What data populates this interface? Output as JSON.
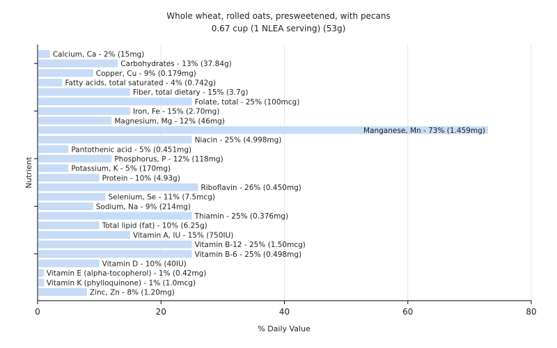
{
  "chart_data": {
    "type": "bar",
    "orientation": "horizontal",
    "title": "Whole wheat, rolled oats, presweetened, with pecans",
    "subtitle": "0.67 cup (1 NLEA serving) (53g)",
    "xlabel": "% Daily Value",
    "ylabel": "Nutrient",
    "xlim": [
      0,
      80
    ],
    "xticks": [
      0,
      20,
      40,
      60,
      80
    ],
    "grid": true,
    "bar_color": "#c6dcf7",
    "categories": [
      "Calcium, Ca",
      "Carbohydrates",
      "Copper, Cu",
      "Fatty acids, total saturated",
      "Fiber, total dietary",
      "Folate, total",
      "Iron, Fe",
      "Magnesium, Mg",
      "Manganese, Mn",
      "Niacin",
      "Pantothenic acid",
      "Phosphorus, P",
      "Potassium, K",
      "Protein",
      "Riboflavin",
      "Selenium, Se",
      "Sodium, Na",
      "Thiamin",
      "Total lipid (fat)",
      "Vitamin A, IU",
      "Vitamin B-12",
      "Vitamin B-6",
      "Vitamin D",
      "Vitamin E (alpha-tocopherol)",
      "Vitamin K (phylloquinone)",
      "Zinc, Zn"
    ],
    "values": [
      2,
      13,
      9,
      4,
      15,
      25,
      15,
      12,
      73,
      25,
      5,
      12,
      5,
      10,
      26,
      11,
      9,
      25,
      10,
      15,
      25,
      25,
      10,
      1,
      1,
      8
    ],
    "labels": [
      "Calcium, Ca - 2% (15mg)",
      "Carbohydrates - 13% (37.84g)",
      "Copper, Cu - 9% (0.179mg)",
      "Fatty acids, total saturated - 4% (0.742g)",
      "Fiber, total dietary - 15% (3.7g)",
      "Folate, total - 25% (100mcg)",
      "Iron, Fe - 15% (2.70mg)",
      "Magnesium, Mg - 12% (46mg)",
      "Manganese, Mn - 73% (1.459mg)",
      "Niacin - 25% (4.998mg)",
      "Pantothenic acid - 5% (0.451mg)",
      "Phosphorus, P - 12% (118mg)",
      "Potassium, K - 5% (170mg)",
      "Protein - 10% (4.93g)",
      "Riboflavin - 26% (0.450mg)",
      "Selenium, Se - 11% (7.5mcg)",
      "Sodium, Na - 9% (214mg)",
      "Thiamin - 25% (0.376mg)",
      "Total lipid (fat) - 10% (6.25g)",
      "Vitamin A, IU - 15% (750IU)",
      "Vitamin B-12 - 25% (1.50mcg)",
      "Vitamin B-6 - 25% (0.498mg)",
      "Vitamin D - 10% (40IU)",
      "Vitamin E (alpha-tocopherol) - 1% (0.42mg)",
      "Vitamin K (phylloquinone) - 1% (1.0mcg)",
      "Zinc, Zn - 8% (1.20mg)"
    ]
  }
}
